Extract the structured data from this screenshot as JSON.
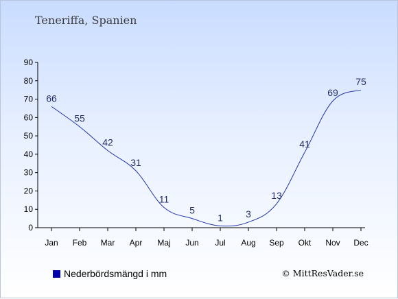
{
  "chart_data": {
    "type": "line",
    "title": "Teneriffa, Spanien",
    "categories": [
      "Jan",
      "Feb",
      "Mar",
      "Apr",
      "Maj",
      "Jun",
      "Jul",
      "Aug",
      "Sep",
      "Okt",
      "Nov",
      "Dec"
    ],
    "series": [
      {
        "name": "Nederbördsmängd i mm",
        "values": [
          66,
          55,
          42,
          31,
          11,
          5,
          1,
          3,
          13,
          41,
          69,
          75
        ],
        "color": "#2233aa"
      }
    ],
    "yticks": [
      0,
      10,
      20,
      30,
      40,
      50,
      60,
      70,
      80,
      90
    ],
    "ylim": [
      0,
      90
    ],
    "grid": false,
    "legend_position": "bottom-left"
  },
  "legend": {
    "label": "Nederbördsmängd i mm",
    "color": "#0000aa"
  },
  "copyright": "© MittResVader.se"
}
